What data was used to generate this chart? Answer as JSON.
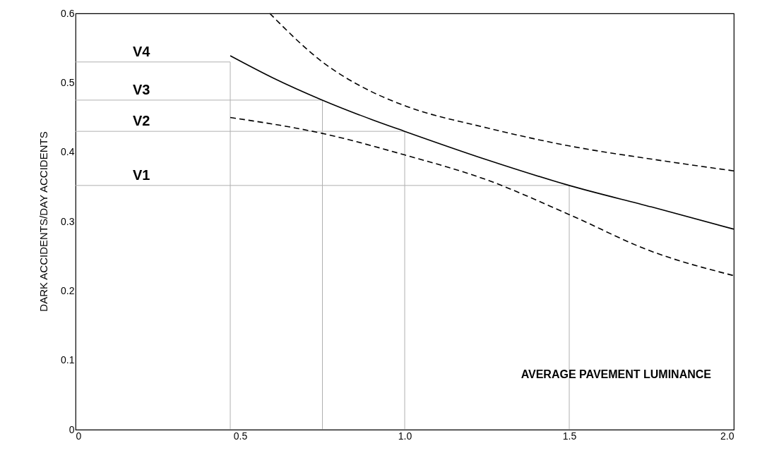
{
  "chart_data": {
    "type": "line",
    "xlabel": "AVERAGE PAVEMENT LUMINANCE",
    "ylabel": "DARK ACCIDENTS/DAY ACCIDENTS",
    "xlim": [
      0,
      2.0
    ],
    "ylim": [
      0,
      0.6
    ],
    "xticks": [
      0,
      0.5,
      {
        "value": 1.0,
        "label": "1.0"
      },
      1.5,
      {
        "value": 2.0,
        "label": "2.0"
      }
    ],
    "yticks": [
      0,
      0.1,
      0.2,
      0.3,
      0.4,
      0.5,
      0.6
    ],
    "grid": false,
    "series": [
      {
        "color": "#000000",
        "line_style": "solid",
        "x": [
          0.47,
          0.6,
          0.75,
          0.9,
          1.0,
          1.25,
          1.5,
          1.75,
          2.0
        ],
        "values": [
          0.539,
          0.507,
          0.475,
          0.447,
          0.43,
          0.389,
          0.352,
          0.321,
          0.289
        ]
      },
      {
        "color": "#000000",
        "line_style": "dashed",
        "x": [
          0.59,
          0.75,
          0.9,
          1.0,
          1.25,
          1.5,
          1.75,
          2.0
        ],
        "values": [
          0.6,
          0.53,
          0.487,
          0.467,
          0.435,
          0.409,
          0.39,
          0.373
        ]
      },
      {
        "color": "#000000",
        "line_style": "dashed",
        "x": [
          0.47,
          0.75,
          1.0,
          1.25,
          1.5,
          1.75,
          2.0
        ],
        "values": [
          0.45,
          0.427,
          0.396,
          0.36,
          0.31,
          0.257,
          0.222
        ]
      }
    ],
    "ref_lines": [
      {
        "axis": "y",
        "value": 0.352,
        "label": "V1",
        "color": "#b0b0b0"
      },
      {
        "axis": "y",
        "value": 0.43,
        "label": "V2",
        "color": "#b0b0b0"
      },
      {
        "axis": "y",
        "value": 0.475,
        "label": "V3",
        "color": "#b0b0b0"
      },
      {
        "axis": "y",
        "value": 0.53,
        "label": "V4",
        "color": "#b0b0b0"
      },
      {
        "axis": "x",
        "value": 1.5,
        "color": "#b0b0b0"
      },
      {
        "axis": "x",
        "value": 1.0,
        "color": "#b0b0b0"
      },
      {
        "axis": "x",
        "value": 0.75,
        "color": "#b0b0b0"
      },
      {
        "axis": "x",
        "value": 0.47,
        "color": "#b0b0b0"
      }
    ]
  }
}
